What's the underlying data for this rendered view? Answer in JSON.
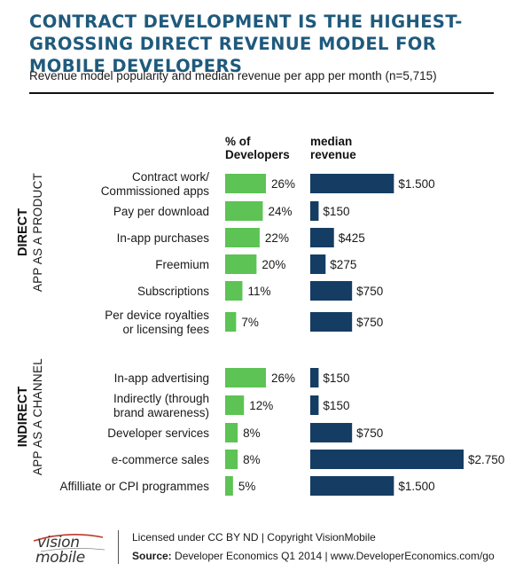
{
  "header": {
    "title": "CONTRACT DEVELOPMENT IS THE HIGHEST-GROSSING DIRECT REVENUE MODEL FOR MOBILE DEVELOPERS",
    "subtitle": "Revenue model popularity and median revenue per app per month (n=5,715)"
  },
  "columns": {
    "developers_line1": "% of",
    "developers_line2": "Developers",
    "revenue_line1": "median",
    "revenue_line2": "revenue"
  },
  "groups": [
    {
      "bold": "DIRECT",
      "regular": "APP AS A PRODUCT"
    },
    {
      "bold": "INDIRECT",
      "regular": "APP AS A CHANNEL"
    }
  ],
  "colors": {
    "developers_bar": "#5cc354",
    "revenue_bar": "#153d63",
    "title": "#1f5a7d"
  },
  "chart_data": {
    "type": "bar",
    "categories": [
      [
        "Contract work/",
        "Commissioned apps"
      ],
      [
        "Pay per download"
      ],
      [
        "In-app purchases"
      ],
      [
        "Freemium"
      ],
      [
        "Subscriptions"
      ],
      [
        "Per device royalties",
        "or licensing fees"
      ],
      [
        "In-app advertising"
      ],
      [
        "Indirectly (through",
        "brand awareness)"
      ],
      [
        "Developer services"
      ],
      [
        "e-commerce sales"
      ],
      [
        "Affilliate or CPI programmes"
      ]
    ],
    "category_group": [
      0,
      0,
      0,
      0,
      0,
      0,
      1,
      1,
      1,
      1,
      1
    ],
    "series": [
      {
        "name": "% of Developers",
        "values": [
          26,
          24,
          22,
          20,
          11,
          7,
          26,
          12,
          8,
          8,
          5
        ],
        "labels": [
          "26%",
          "24%",
          "22%",
          "20%",
          "11%",
          "7%",
          "26%",
          "12%",
          "8%",
          "8%",
          "5%"
        ]
      },
      {
        "name": "median revenue",
        "values": [
          1500,
          150,
          425,
          275,
          750,
          750,
          150,
          150,
          750,
          2750,
          1500
        ],
        "labels": [
          "$1.500",
          "$150",
          "$425",
          "$275",
          "$750",
          "$750",
          "$150",
          "$150",
          "$750",
          "$2.750",
          "$1.500"
        ]
      }
    ]
  },
  "footer": {
    "logo_line1": "vision",
    "logo_line2": "mobile",
    "license": "Licensed under CC BY ND | Copyright VisionMobile",
    "source_label": "Source:",
    "source_text": " Developer Economics Q1 2014 | www.DeveloperEconomics.com/go"
  }
}
